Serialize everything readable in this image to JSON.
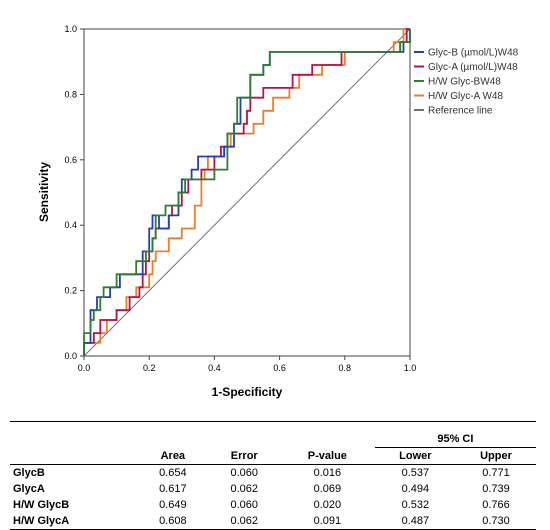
{
  "chart_data": {
    "type": "line",
    "xlabel": "1-Specificity",
    "ylabel": "Sensitivity",
    "xlim": [
      0,
      1
    ],
    "ylim": [
      0,
      1
    ],
    "x_ticks": [
      "0.0",
      "0.2",
      "0.4",
      "0.6",
      "0.8",
      "1.0"
    ],
    "y_ticks": [
      "0.0",
      "0.2",
      "0.4",
      "0.6",
      "0.8",
      "1.0"
    ],
    "grid": false,
    "legend_position": "top-right",
    "series": [
      {
        "name": "Glyc-B (µmol/L)W48",
        "color": "#2b3fa8",
        "points": [
          [
            0,
            0
          ],
          [
            0,
            0.04
          ],
          [
            0.02,
            0.04
          ],
          [
            0.02,
            0.14
          ],
          [
            0.04,
            0.14
          ],
          [
            0.04,
            0.18
          ],
          [
            0.08,
            0.18
          ],
          [
            0.08,
            0.21
          ],
          [
            0.11,
            0.21
          ],
          [
            0.11,
            0.25
          ],
          [
            0.18,
            0.25
          ],
          [
            0.18,
            0.32
          ],
          [
            0.2,
            0.32
          ],
          [
            0.2,
            0.39
          ],
          [
            0.21,
            0.39
          ],
          [
            0.21,
            0.43
          ],
          [
            0.23,
            0.43
          ],
          [
            0.23,
            0.39
          ],
          [
            0.26,
            0.39
          ],
          [
            0.26,
            0.43
          ],
          [
            0.29,
            0.43
          ],
          [
            0.29,
            0.5
          ],
          [
            0.3,
            0.5
          ],
          [
            0.3,
            0.54
          ],
          [
            0.33,
            0.54
          ],
          [
            0.33,
            0.57
          ],
          [
            0.35,
            0.57
          ],
          [
            0.35,
            0.61
          ],
          [
            0.43,
            0.61
          ],
          [
            0.43,
            0.64
          ],
          [
            0.46,
            0.64
          ],
          [
            0.46,
            0.71
          ],
          [
            0.48,
            0.71
          ],
          [
            0.48,
            0.79
          ],
          [
            0.51,
            0.79
          ],
          [
            0.51,
            0.86
          ],
          [
            0.55,
            0.86
          ],
          [
            0.55,
            0.89
          ],
          [
            0.57,
            0.89
          ],
          [
            0.57,
            0.93
          ],
          [
            0.98,
            0.93
          ],
          [
            0.98,
            0.96
          ],
          [
            1,
            0.96
          ],
          [
            1,
            1
          ]
        ]
      },
      {
        "name": "Glyc-A (µmol/L)W48",
        "color": "#b01448",
        "points": [
          [
            0,
            0
          ],
          [
            0,
            0.04
          ],
          [
            0.03,
            0.04
          ],
          [
            0.03,
            0.07
          ],
          [
            0.05,
            0.07
          ],
          [
            0.05,
            0.11
          ],
          [
            0.1,
            0.11
          ],
          [
            0.1,
            0.14
          ],
          [
            0.14,
            0.14
          ],
          [
            0.14,
            0.18
          ],
          [
            0.17,
            0.18
          ],
          [
            0.17,
            0.21
          ],
          [
            0.18,
            0.21
          ],
          [
            0.18,
            0.25
          ],
          [
            0.19,
            0.25
          ],
          [
            0.19,
            0.29
          ],
          [
            0.2,
            0.29
          ],
          [
            0.2,
            0.32
          ],
          [
            0.21,
            0.32
          ],
          [
            0.21,
            0.36
          ],
          [
            0.22,
            0.36
          ],
          [
            0.22,
            0.39
          ],
          [
            0.26,
            0.39
          ],
          [
            0.26,
            0.43
          ],
          [
            0.27,
            0.43
          ],
          [
            0.27,
            0.46
          ],
          [
            0.3,
            0.46
          ],
          [
            0.3,
            0.5
          ],
          [
            0.32,
            0.5
          ],
          [
            0.32,
            0.54
          ],
          [
            0.36,
            0.54
          ],
          [
            0.36,
            0.57
          ],
          [
            0.4,
            0.57
          ],
          [
            0.4,
            0.61
          ],
          [
            0.42,
            0.61
          ],
          [
            0.42,
            0.64
          ],
          [
            0.44,
            0.64
          ],
          [
            0.44,
            0.68
          ],
          [
            0.49,
            0.68
          ],
          [
            0.49,
            0.71
          ],
          [
            0.5,
            0.71
          ],
          [
            0.5,
            0.75
          ],
          [
            0.51,
            0.75
          ],
          [
            0.51,
            0.79
          ],
          [
            0.55,
            0.79
          ],
          [
            0.55,
            0.82
          ],
          [
            0.64,
            0.82
          ],
          [
            0.64,
            0.86
          ],
          [
            0.7,
            0.86
          ],
          [
            0.7,
            0.89
          ],
          [
            0.79,
            0.89
          ],
          [
            0.79,
            0.93
          ],
          [
            0.97,
            0.93
          ],
          [
            0.97,
            0.96
          ],
          [
            0.99,
            0.96
          ],
          [
            0.99,
            1
          ],
          [
            1,
            1
          ]
        ]
      },
      {
        "name": "H/W Glyc-BW48",
        "color": "#2e7d32",
        "points": [
          [
            0,
            0
          ],
          [
            0,
            0.07
          ],
          [
            0.02,
            0.07
          ],
          [
            0.02,
            0.11
          ],
          [
            0.03,
            0.11
          ],
          [
            0.03,
            0.14
          ],
          [
            0.05,
            0.14
          ],
          [
            0.05,
            0.18
          ],
          [
            0.06,
            0.18
          ],
          [
            0.06,
            0.21
          ],
          [
            0.1,
            0.21
          ],
          [
            0.1,
            0.25
          ],
          [
            0.16,
            0.25
          ],
          [
            0.16,
            0.29
          ],
          [
            0.19,
            0.29
          ],
          [
            0.19,
            0.32
          ],
          [
            0.21,
            0.32
          ],
          [
            0.21,
            0.36
          ],
          [
            0.22,
            0.36
          ],
          [
            0.22,
            0.43
          ],
          [
            0.25,
            0.43
          ],
          [
            0.25,
            0.46
          ],
          [
            0.29,
            0.46
          ],
          [
            0.29,
            0.5
          ],
          [
            0.31,
            0.5
          ],
          [
            0.31,
            0.54
          ],
          [
            0.4,
            0.54
          ],
          [
            0.4,
            0.57
          ],
          [
            0.44,
            0.57
          ],
          [
            0.44,
            0.68
          ],
          [
            0.46,
            0.68
          ],
          [
            0.46,
            0.71
          ],
          [
            0.47,
            0.71
          ],
          [
            0.47,
            0.79
          ],
          [
            0.51,
            0.79
          ],
          [
            0.51,
            0.86
          ],
          [
            0.55,
            0.86
          ],
          [
            0.55,
            0.89
          ],
          [
            0.57,
            0.89
          ],
          [
            0.57,
            0.93
          ],
          [
            0.97,
            0.93
          ],
          [
            0.97,
            0.96
          ],
          [
            1,
            0.96
          ],
          [
            1,
            1
          ]
        ]
      },
      {
        "name": "H/W Glyc-A W48",
        "color": "#ee7d2a",
        "points": [
          [
            0,
            0
          ],
          [
            0,
            0.04
          ],
          [
            0.05,
            0.04
          ],
          [
            0.05,
            0.07
          ],
          [
            0.07,
            0.07
          ],
          [
            0.07,
            0.11
          ],
          [
            0.1,
            0.11
          ],
          [
            0.1,
            0.14
          ],
          [
            0.13,
            0.14
          ],
          [
            0.13,
            0.18
          ],
          [
            0.16,
            0.18
          ],
          [
            0.16,
            0.21
          ],
          [
            0.2,
            0.21
          ],
          [
            0.2,
            0.25
          ],
          [
            0.21,
            0.25
          ],
          [
            0.21,
            0.29
          ],
          [
            0.22,
            0.29
          ],
          [
            0.22,
            0.32
          ],
          [
            0.26,
            0.32
          ],
          [
            0.26,
            0.36
          ],
          [
            0.3,
            0.36
          ],
          [
            0.3,
            0.39
          ],
          [
            0.34,
            0.39
          ],
          [
            0.34,
            0.46
          ],
          [
            0.36,
            0.46
          ],
          [
            0.36,
            0.54
          ],
          [
            0.37,
            0.54
          ],
          [
            0.37,
            0.57
          ],
          [
            0.38,
            0.57
          ],
          [
            0.38,
            0.61
          ],
          [
            0.43,
            0.61
          ],
          [
            0.43,
            0.64
          ],
          [
            0.45,
            0.64
          ],
          [
            0.45,
            0.68
          ],
          [
            0.52,
            0.68
          ],
          [
            0.52,
            0.71
          ],
          [
            0.55,
            0.71
          ],
          [
            0.55,
            0.75
          ],
          [
            0.58,
            0.75
          ],
          [
            0.58,
            0.79
          ],
          [
            0.63,
            0.79
          ],
          [
            0.63,
            0.82
          ],
          [
            0.66,
            0.82
          ],
          [
            0.66,
            0.86
          ],
          [
            0.73,
            0.86
          ],
          [
            0.73,
            0.89
          ],
          [
            0.8,
            0.89
          ],
          [
            0.8,
            0.93
          ],
          [
            0.95,
            0.93
          ],
          [
            0.95,
            0.96
          ],
          [
            0.98,
            0.96
          ],
          [
            0.98,
            1
          ],
          [
            1,
            1
          ]
        ]
      },
      {
        "name": "Reference line",
        "color": "#707070",
        "points": [
          [
            0,
            0
          ],
          [
            1,
            1
          ]
        ]
      }
    ]
  },
  "table": {
    "ci_label": "95% CI",
    "headers": [
      "",
      "Area",
      "Error",
      "P-value",
      "Lower",
      "Upper"
    ],
    "rows": [
      [
        "GlycB",
        "0.654",
        "0.060",
        "0.016",
        "0.537",
        "0.771"
      ],
      [
        "GlycA",
        "0.617",
        "0.062",
        "0.069",
        "0.494",
        "0.739"
      ],
      [
        "H/W GlycB",
        "0.649",
        "0.060",
        "0.020",
        "0.532",
        "0.766"
      ],
      [
        "H/W GlycA",
        "0.608",
        "0.062",
        "0.091",
        "0.487",
        "0.730"
      ]
    ]
  }
}
